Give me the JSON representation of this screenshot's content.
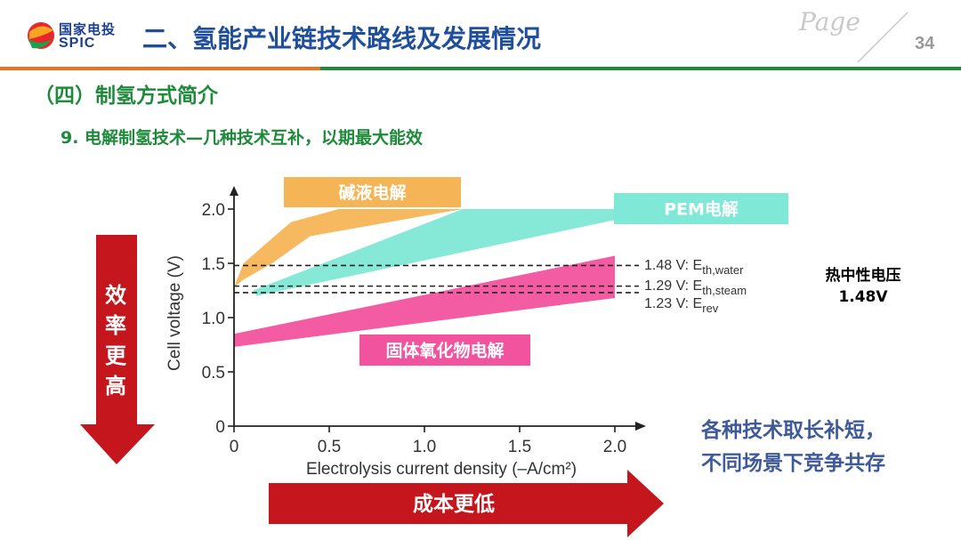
{
  "header": {
    "logo_cn": "国家电投",
    "logo_en": "SPIC",
    "title": "二、氢能产业链技术路线及发展情况",
    "page_word": "Page",
    "page_number": "34"
  },
  "section_title": "（四）制氢方式简介",
  "subtitle": "9. 电解制氢技术—几种技术互补，以期最大能效",
  "left_arrow_text": "效率更高",
  "bottom_arrow_text": "成本更低",
  "thermoneutral": {
    "line1": "热中性电压",
    "line2": "1.48V"
  },
  "conclusion": {
    "line1": "各种技术取长补短，",
    "line2": "不同场景下竞争共存"
  },
  "colors": {
    "header_blue": "#1f4e9a",
    "section_green": "#1e8a3a",
    "arrow_red": "#c4161c",
    "alkaline": "#f5b557",
    "pem": "#7fe8d6",
    "soec": "#f2539e"
  },
  "chart_data": {
    "type": "area",
    "xlabel": "Electrolysis current density (–A/cm²)",
    "ylabel": "Cell voltage (V)",
    "xlim": [
      0,
      2.0
    ],
    "ylim": [
      0,
      2.0
    ],
    "xticks": [
      "0",
      "0.5",
      "1.0",
      "1.5",
      "2.0"
    ],
    "yticks": [
      "0",
      "0.5",
      "1.0",
      "1.5",
      "2.0"
    ],
    "series": [
      {
        "name": "碱液电解",
        "upper": [
          [
            0,
            1.28
          ],
          [
            0.05,
            1.5
          ],
          [
            0.2,
            1.73
          ],
          [
            0.3,
            1.88
          ],
          [
            0.55,
            2.0
          ],
          [
            1.2,
            2.0
          ]
        ],
        "lower": [
          [
            1.2,
            2.0
          ],
          [
            0.4,
            1.75
          ],
          [
            0.2,
            1.5
          ],
          [
            0.05,
            1.35
          ],
          [
            0,
            1.28
          ]
        ]
      },
      {
        "name": "PEM电解",
        "upper": [
          [
            0.1,
            1.25
          ],
          [
            1.2,
            2.0
          ],
          [
            2.0,
            2.0
          ]
        ],
        "lower": [
          [
            2.0,
            1.9
          ],
          [
            0.12,
            1.2
          ]
        ]
      },
      {
        "name": "固体氧化物电解",
        "upper": [
          [
            0,
            0.85
          ],
          [
            2.0,
            1.57
          ]
        ],
        "lower": [
          [
            2.0,
            1.18
          ],
          [
            0,
            0.73
          ]
        ]
      }
    ],
    "reference_lines": [
      {
        "value": 1.48,
        "label_main": "1.48 V: E",
        "label_sub": "th,water"
      },
      {
        "value": 1.29,
        "label_main": "1.29 V: E",
        "label_sub": "th,steam"
      },
      {
        "value": 1.23,
        "label_main": "1.23 V: E",
        "label_sub": "rev"
      }
    ]
  }
}
